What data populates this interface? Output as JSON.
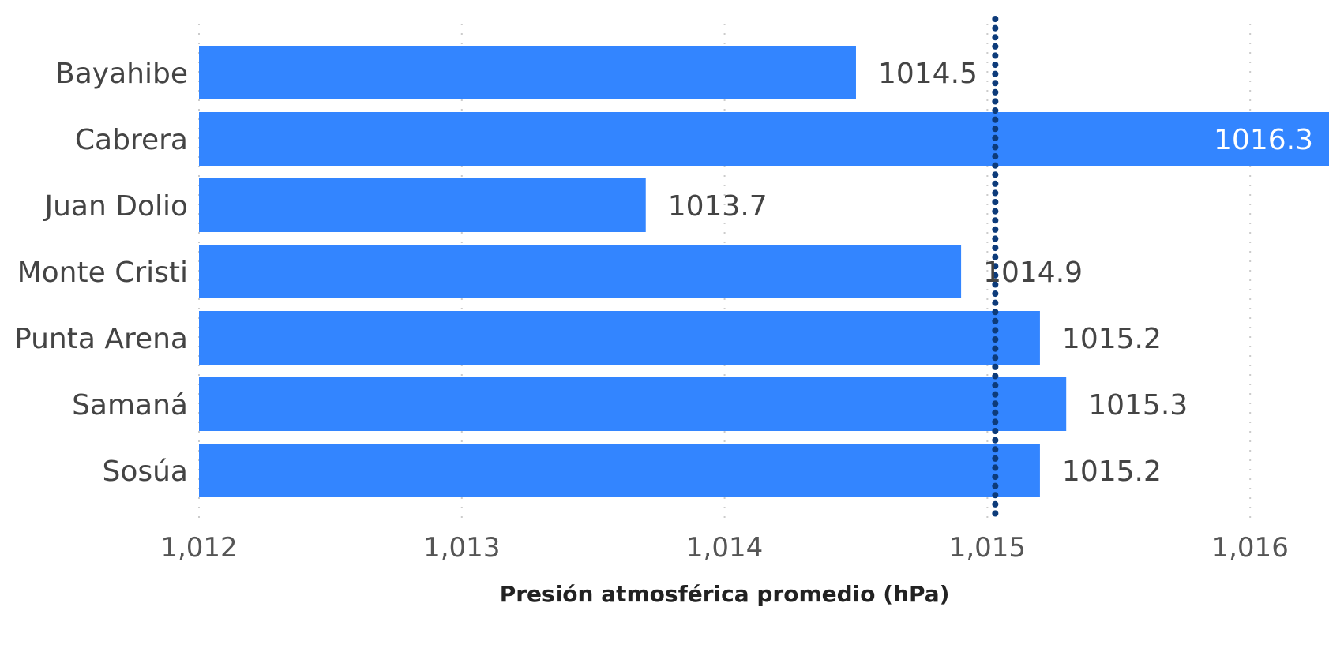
{
  "chart_data": {
    "type": "bar",
    "orientation": "horizontal",
    "categories": [
      "Bayahibe",
      "Cabrera",
      "Juan Dolio",
      "Monte Cristi",
      "Punta Arena",
      "Samaná",
      "Sosúa"
    ],
    "values": [
      1014.5,
      1016.3,
      1013.7,
      1014.9,
      1015.2,
      1015.3,
      1015.2
    ],
    "value_labels": [
      "1014.5",
      "1016.3",
      "1013.7",
      "1014.9",
      "1015.2",
      "1015.3",
      "1015.2"
    ],
    "xlabel": "Presión atmosférica promedio (hPa)",
    "xticks": [
      1012,
      1013,
      1014,
      1015,
      1016
    ],
    "xtick_labels": [
      "1,012",
      "1,013",
      "1,014",
      "1,015",
      "1,016"
    ],
    "xlim": [
      1012,
      1016.3
    ],
    "reference_line": {
      "value": 1015.03,
      "style": "dotted"
    },
    "grid": true,
    "colors": {
      "bar": "#3385ff",
      "reference": "#0d3b7a",
      "label": "#444444",
      "label_inside": "#ffffff"
    }
  }
}
